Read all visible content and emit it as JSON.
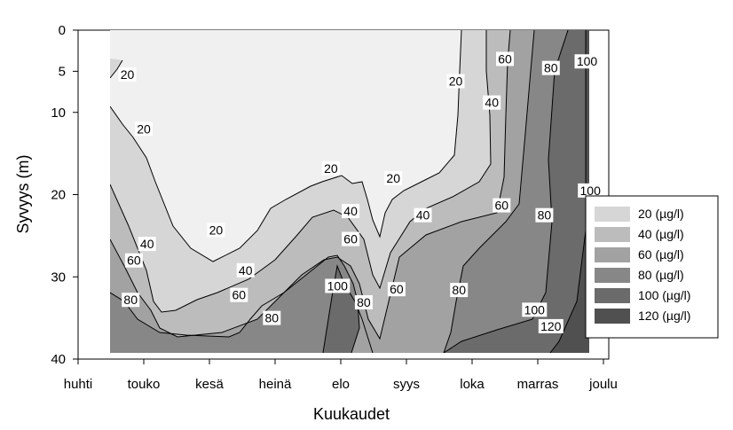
{
  "chart_data": {
    "type": "contour",
    "xlabel": "Kuukaudet",
    "ylabel": "Syvyys (m)",
    "x_ticks": [
      "huhti",
      "touko",
      "kesä",
      "heinä",
      "elo",
      "syys",
      "loka",
      "marras",
      "joulu"
    ],
    "y_ticks": [
      0,
      5,
      10,
      20,
      30,
      40
    ],
    "y_axis_direction": "depth increasing downward",
    "levels": [
      20,
      40,
      60,
      80,
      100,
      120
    ],
    "legend": {
      "placement": "right",
      "entries": [
        "20 (µg/l)",
        "40 (µg/l)",
        "60 (µg/l)",
        "80 (µg/l)",
        "100 (µg/l)",
        "120 (µg/l)"
      ]
    },
    "fill_colors": [
      "#f0f0f0",
      "#d6d6d6",
      "#bcbcbc",
      "#a2a2a2",
      "#878787",
      "#6b6b6b",
      "#505050"
    ],
    "contour_labels": [
      {
        "text": "20",
        "month": 0.75,
        "depth": 5.4
      },
      {
        "text": "20",
        "month": 1.0,
        "depth": 12.0
      },
      {
        "text": "20",
        "month": 2.1,
        "depth": 24.3
      },
      {
        "text": "20",
        "month": 3.85,
        "depth": 16.8
      },
      {
        "text": "20",
        "month": 4.8,
        "depth": 18.0
      },
      {
        "text": "20",
        "month": 5.75,
        "depth": 6.2
      },
      {
        "text": "40",
        "month": 1.05,
        "depth": 26.0
      },
      {
        "text": "40",
        "month": 2.55,
        "depth": 29.2
      },
      {
        "text": "40",
        "month": 4.15,
        "depth": 22.0
      },
      {
        "text": "40",
        "month": 5.25,
        "depth": 22.5
      },
      {
        "text": "40",
        "month": 6.3,
        "depth": 8.8
      },
      {
        "text": "60",
        "month": 0.85,
        "depth": 28.0
      },
      {
        "text": "60",
        "month": 2.45,
        "depth": 32.2
      },
      {
        "text": "60",
        "month": 4.15,
        "depth": 25.4
      },
      {
        "text": "60",
        "month": 4.85,
        "depth": 31.5
      },
      {
        "text": "60",
        "month": 6.45,
        "depth": 21.3
      },
      {
        "text": "60",
        "month": 6.5,
        "depth": 3.5
      },
      {
        "text": "80",
        "month": 0.8,
        "depth": 32.8
      },
      {
        "text": "80",
        "month": 2.95,
        "depth": 35.0
      },
      {
        "text": "80",
        "month": 4.35,
        "depth": 33.1
      },
      {
        "text": "80",
        "month": 5.8,
        "depth": 31.6
      },
      {
        "text": "80",
        "month": 7.1,
        "depth": 22.5
      },
      {
        "text": "80",
        "month": 7.2,
        "depth": 4.6
      },
      {
        "text": "100",
        "month": 3.95,
        "depth": 31.1
      },
      {
        "text": "100",
        "month": 6.95,
        "depth": 34.0
      },
      {
        "text": "100",
        "month": 7.75,
        "depth": 3.8
      },
      {
        "text": "100",
        "month": 7.8,
        "depth": 19.5
      },
      {
        "text": "120",
        "month": 7.2,
        "depth": 36.0
      }
    ]
  }
}
